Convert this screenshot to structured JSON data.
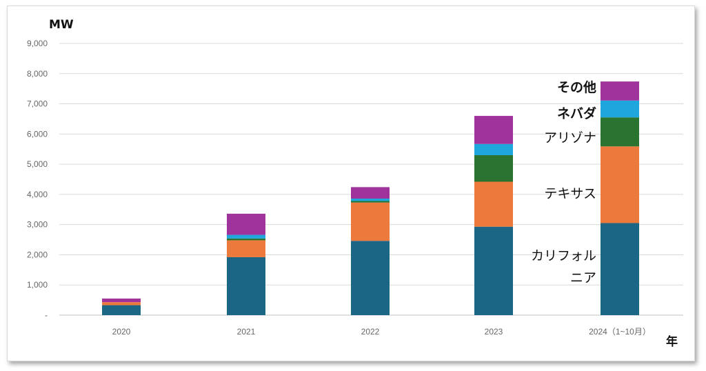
{
  "chart_data": {
    "type": "bar",
    "stacked": true,
    "categories": [
      "2020",
      "2021",
      "2022",
      "2023",
      "2024（1~10月）"
    ],
    "ylabel": "MW",
    "xlabel": "年",
    "ylim": [
      0,
      9000
    ],
    "yticks": [
      {
        "value": 0,
        "label": "-"
      },
      {
        "value": 1000,
        "label": "1,000"
      },
      {
        "value": 2000,
        "label": "2,000"
      },
      {
        "value": 3000,
        "label": "3,000"
      },
      {
        "value": 4000,
        "label": "4,000"
      },
      {
        "value": 5000,
        "label": "5,000"
      },
      {
        "value": 6000,
        "label": "6,000"
      },
      {
        "value": 7000,
        "label": "7,000"
      },
      {
        "value": 8000,
        "label": "8,000"
      },
      {
        "value": 9000,
        "label": "9,000"
      }
    ],
    "grid": true,
    "series": [
      {
        "name": "カリフォルニア",
        "label_lines": [
          "カリフォル",
          "ニア"
        ],
        "color": "#1b6585",
        "values": [
          330,
          1920,
          2460,
          2930,
          3050
        ]
      },
      {
        "name": "テキサス",
        "label_lines": [
          "テキサス"
        ],
        "color": "#ec7a3c",
        "values": [
          100,
          560,
          1270,
          1490,
          2540
        ]
      },
      {
        "name": "アリゾナ",
        "label_lines": [
          "アリゾナ"
        ],
        "color": "#2a7330",
        "values": [
          0,
          60,
          50,
          880,
          960
        ]
      },
      {
        "name": "ネバダ",
        "label_lines": [
          "ネバダ"
        ],
        "color": "#1ea6dd",
        "values": [
          0,
          120,
          80,
          370,
          560
        ]
      },
      {
        "name": "その他",
        "label_lines": [
          "その他"
        ],
        "color": "#a0329c",
        "values": [
          120,
          700,
          380,
          930,
          630
        ]
      }
    ]
  }
}
